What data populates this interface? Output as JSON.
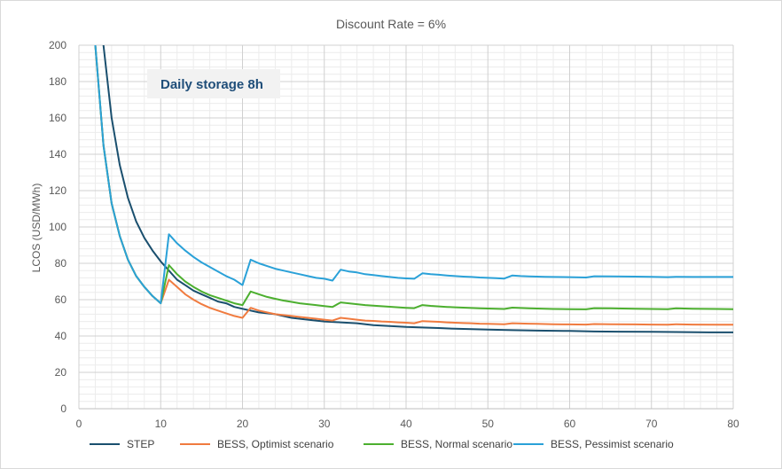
{
  "chart_data": {
    "type": "line",
    "title": "Discount Rate = 6%",
    "xlabel": "",
    "ylabel": "LCOS (USD/MWh)",
    "xlim": [
      0,
      80
    ],
    "ylim": [
      0,
      200
    ],
    "x_major_ticks": [
      0,
      10,
      20,
      30,
      40,
      50,
      60,
      70,
      80
    ],
    "y_major_ticks": [
      0,
      20,
      40,
      60,
      80,
      100,
      120,
      140,
      160,
      180,
      200
    ],
    "grid": true,
    "minor_grid": true,
    "legend_position": "bottom",
    "annotation": "Daily storage 8h",
    "series": [
      {
        "name": "STEP",
        "color": "#1a4f6e",
        "points": [
          [
            3,
            200
          ],
          [
            4,
            160
          ],
          [
            5,
            134
          ],
          [
            6,
            116
          ],
          [
            7,
            103
          ],
          [
            8,
            94
          ],
          [
            9,
            87
          ],
          [
            10,
            81
          ],
          [
            11,
            76
          ],
          [
            12,
            71
          ],
          [
            13,
            68
          ],
          [
            14,
            65
          ],
          [
            15,
            63
          ],
          [
            16,
            61
          ],
          [
            17,
            59
          ],
          [
            18,
            58
          ],
          [
            19,
            56
          ],
          [
            20,
            55
          ],
          [
            22,
            53
          ],
          [
            24,
            52
          ],
          [
            26,
            50
          ],
          [
            28,
            49
          ],
          [
            30,
            48
          ],
          [
            32,
            47.5
          ],
          [
            34,
            47
          ],
          [
            36,
            46
          ],
          [
            38,
            45.5
          ],
          [
            40,
            45
          ],
          [
            42,
            44.7
          ],
          [
            44,
            44.4
          ],
          [
            46,
            44
          ],
          [
            48,
            43.8
          ],
          [
            50,
            43.5
          ],
          [
            53,
            43.2
          ],
          [
            56,
            43
          ],
          [
            60,
            42.8
          ],
          [
            63,
            42.5
          ],
          [
            66,
            42.4
          ],
          [
            70,
            42.3
          ],
          [
            73,
            42.2
          ],
          [
            77,
            42
          ],
          [
            80,
            42
          ]
        ]
      },
      {
        "name": "BESS, Optimist scenario",
        "color": "#f07b3f",
        "points": [
          [
            2,
            200
          ],
          [
            3,
            145
          ],
          [
            4,
            113
          ],
          [
            5,
            95
          ],
          [
            6,
            82
          ],
          [
            7,
            73
          ],
          [
            8,
            67
          ],
          [
            9,
            62
          ],
          [
            10,
            58
          ],
          [
            11,
            71
          ],
          [
            12,
            67
          ],
          [
            13,
            63
          ],
          [
            14,
            60
          ],
          [
            15,
            57.5
          ],
          [
            16,
            55.5
          ],
          [
            17,
            54
          ],
          [
            18,
            52.5
          ],
          [
            19,
            51
          ],
          [
            20,
            50
          ],
          [
            21,
            55.5
          ],
          [
            22,
            54
          ],
          [
            23,
            53
          ],
          [
            24,
            52
          ],
          [
            25,
            51.5
          ],
          [
            26,
            51
          ],
          [
            27,
            50.5
          ],
          [
            28,
            50
          ],
          [
            29,
            49.5
          ],
          [
            30,
            49
          ],
          [
            31,
            48.5
          ],
          [
            32,
            50
          ],
          [
            33,
            49.5
          ],
          [
            34,
            49
          ],
          [
            35,
            48.5
          ],
          [
            36,
            48.3
          ],
          [
            37,
            48
          ],
          [
            38,
            47.8
          ],
          [
            39,
            47.5
          ],
          [
            40,
            47.3
          ],
          [
            41,
            47
          ],
          [
            42,
            48.2
          ],
          [
            43,
            48
          ],
          [
            44,
            47.8
          ],
          [
            45,
            47.5
          ],
          [
            46,
            47.3
          ],
          [
            47,
            47.1
          ],
          [
            48,
            47
          ],
          [
            49,
            46.8
          ],
          [
            50,
            46.7
          ],
          [
            51,
            46.6
          ],
          [
            52,
            46.5
          ],
          [
            53,
            47
          ],
          [
            54,
            46.9
          ],
          [
            55,
            46.8
          ],
          [
            56,
            46.7
          ],
          [
            57,
            46.6
          ],
          [
            58,
            46.5
          ],
          [
            60,
            46.4
          ],
          [
            62,
            46.3
          ],
          [
            63,
            46.6
          ],
          [
            65,
            46.5
          ],
          [
            68,
            46.4
          ],
          [
            70,
            46.3
          ],
          [
            72,
            46.2
          ],
          [
            73,
            46.5
          ],
          [
            75,
            46.3
          ],
          [
            78,
            46.2
          ],
          [
            80,
            46.2
          ]
        ]
      },
      {
        "name": "BESS, Normal scenario",
        "color": "#4caf2f",
        "points": [
          [
            2,
            200
          ],
          [
            3,
            145
          ],
          [
            4,
            113
          ],
          [
            5,
            95
          ],
          [
            6,
            82
          ],
          [
            7,
            73
          ],
          [
            8,
            67
          ],
          [
            9,
            62
          ],
          [
            10,
            58
          ],
          [
            11,
            79
          ],
          [
            12,
            74
          ],
          [
            13,
            70
          ],
          [
            14,
            67
          ],
          [
            15,
            64.5
          ],
          [
            16,
            62.5
          ],
          [
            17,
            61
          ],
          [
            18,
            59.5
          ],
          [
            19,
            58
          ],
          [
            20,
            57
          ],
          [
            21,
            64.5
          ],
          [
            22,
            63
          ],
          [
            23,
            61.5
          ],
          [
            24,
            60.5
          ],
          [
            25,
            59.5
          ],
          [
            26,
            58.8
          ],
          [
            27,
            58
          ],
          [
            28,
            57.5
          ],
          [
            29,
            57
          ],
          [
            30,
            56.5
          ],
          [
            31,
            56
          ],
          [
            32,
            58.5
          ],
          [
            33,
            58
          ],
          [
            34,
            57.5
          ],
          [
            35,
            57
          ],
          [
            36,
            56.7
          ],
          [
            37,
            56.4
          ],
          [
            38,
            56.1
          ],
          [
            39,
            55.8
          ],
          [
            40,
            55.5
          ],
          [
            41,
            55.3
          ],
          [
            42,
            57
          ],
          [
            43,
            56.6
          ],
          [
            44,
            56.3
          ],
          [
            45,
            56
          ],
          [
            46,
            55.8
          ],
          [
            47,
            55.6
          ],
          [
            48,
            55.4
          ],
          [
            49,
            55.2
          ],
          [
            50,
            55.1
          ],
          [
            51,
            55
          ],
          [
            52,
            54.9
          ],
          [
            53,
            55.6
          ],
          [
            54,
            55.4
          ],
          [
            55,
            55.2
          ],
          [
            56,
            55.1
          ],
          [
            57,
            55
          ],
          [
            58,
            54.9
          ],
          [
            60,
            54.8
          ],
          [
            62,
            54.7
          ],
          [
            63,
            55.3
          ],
          [
            65,
            55.2
          ],
          [
            68,
            55
          ],
          [
            70,
            54.9
          ],
          [
            72,
            54.8
          ],
          [
            73,
            55.2
          ],
          [
            75,
            55
          ],
          [
            78,
            54.9
          ],
          [
            80,
            54.8
          ]
        ]
      },
      {
        "name": "BESS, Pessimist scenario",
        "color": "#2aa1d8",
        "points": [
          [
            2,
            200
          ],
          [
            3,
            145
          ],
          [
            4,
            113
          ],
          [
            5,
            95
          ],
          [
            6,
            82
          ],
          [
            7,
            73
          ],
          [
            8,
            67
          ],
          [
            9,
            62
          ],
          [
            10,
            58
          ],
          [
            11,
            96
          ],
          [
            12,
            91
          ],
          [
            13,
            87
          ],
          [
            14,
            83.5
          ],
          [
            15,
            80.5
          ],
          [
            16,
            78
          ],
          [
            17,
            75.5
          ],
          [
            18,
            73
          ],
          [
            19,
            71
          ],
          [
            20,
            68
          ],
          [
            21,
            82
          ],
          [
            22,
            80
          ],
          [
            23,
            78.5
          ],
          [
            24,
            77
          ],
          [
            25,
            76
          ],
          [
            26,
            75
          ],
          [
            27,
            74
          ],
          [
            28,
            73
          ],
          [
            29,
            72
          ],
          [
            30,
            71.5
          ],
          [
            31,
            70.5
          ],
          [
            32,
            76.5
          ],
          [
            33,
            75.5
          ],
          [
            34,
            75
          ],
          [
            35,
            74
          ],
          [
            36,
            73.5
          ],
          [
            37,
            73
          ],
          [
            38,
            72.5
          ],
          [
            39,
            72
          ],
          [
            40,
            71.7
          ],
          [
            41,
            71.5
          ],
          [
            42,
            74.5
          ],
          [
            43,
            74
          ],
          [
            44,
            73.7
          ],
          [
            45,
            73.3
          ],
          [
            46,
            73
          ],
          [
            47,
            72.7
          ],
          [
            48,
            72.5
          ],
          [
            49,
            72.2
          ],
          [
            50,
            72
          ],
          [
            51,
            71.8
          ],
          [
            52,
            71.6
          ],
          [
            53,
            73.3
          ],
          [
            54,
            73
          ],
          [
            55,
            72.8
          ],
          [
            56,
            72.7
          ],
          [
            57,
            72.6
          ],
          [
            58,
            72.5
          ],
          [
            60,
            72.4
          ],
          [
            62,
            72.2
          ],
          [
            63,
            72.9
          ],
          [
            65,
            72.8
          ],
          [
            68,
            72.7
          ],
          [
            70,
            72.6
          ],
          [
            72,
            72.4
          ],
          [
            73,
            72.6
          ],
          [
            75,
            72.5
          ],
          [
            78,
            72.5
          ],
          [
            80,
            72.5
          ]
        ]
      }
    ]
  }
}
